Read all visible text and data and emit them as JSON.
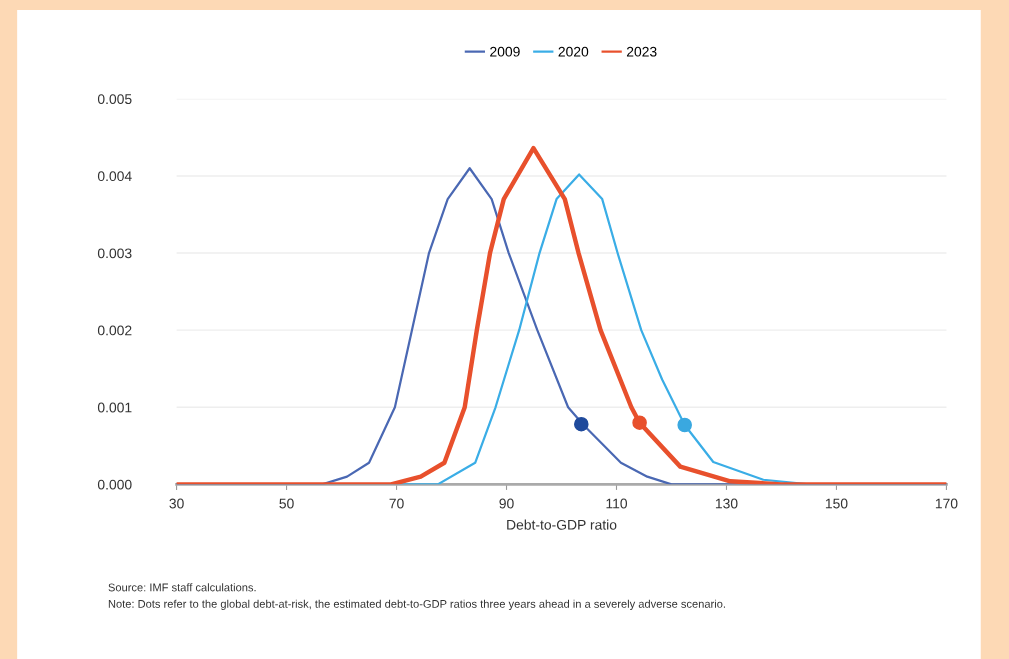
{
  "chart_data": {
    "type": "line",
    "xlabel": "Debt-to-GDP ratio",
    "xlim": [
      30,
      170
    ],
    "xticks": [
      30,
      50,
      70,
      90,
      110,
      130,
      150,
      170
    ],
    "ylim": [
      0,
      0.005
    ],
    "yticks": [
      {
        "value": 0,
        "label": "0.000"
      },
      {
        "value": 0.001,
        "label": "0.001"
      },
      {
        "value": 0.002,
        "label": "0.002"
      },
      {
        "value": 0.003,
        "label": "0.003"
      },
      {
        "value": 0.004,
        "label": "0.004"
      },
      {
        "value": 0.005,
        "label": "0.005"
      }
    ],
    "grid": "y",
    "legend": "top",
    "marker": "none",
    "line_style": "solid",
    "series": [
      {
        "name": "2009",
        "color": "#4a68b3",
        "x": [
          30,
          50,
          56.5,
          61,
          65,
          69.7,
          72.8,
          75.9,
          79.3,
          83.3,
          87.3,
          90.4,
          95.6,
          101.2,
          104,
          110.8,
          115.6,
          120,
          125,
          170
        ],
        "values": [
          0,
          0,
          0,
          0.0001,
          0.00028,
          0.001,
          0.002,
          0.003,
          0.0037,
          0.0041,
          0.0037,
          0.003,
          0.002,
          0.001,
          0.00077,
          0.00028,
          0.0001,
          0,
          0,
          0
        ]
      },
      {
        "name": "2020",
        "color": "#3aade6",
        "x": [
          30,
          70,
          77.5,
          84.3,
          88,
          92.3,
          96,
          99.1,
          103.2,
          107.4,
          110.2,
          114.5,
          118.3,
          122.4,
          127.6,
          136.7,
          145,
          170
        ],
        "values": [
          0,
          0,
          0,
          0.00028,
          0.001,
          0.002,
          0.003,
          0.0037,
          0.00402,
          0.0037,
          0.003,
          0.002,
          0.00136,
          0.00077,
          0.00029,
          6e-05,
          0,
          0
        ]
      },
      {
        "name": "2023",
        "color": "#e8502c",
        "x": [
          30,
          65,
          69,
          74.4,
          78.7,
          82.4,
          84.6,
          87,
          89.5,
          94.9,
          100.6,
          103.1,
          107.1,
          112.7,
          114.2,
          121.6,
          130.7,
          140,
          170
        ],
        "values": [
          0,
          0,
          0,
          0.0001,
          0.00028,
          0.001,
          0.002,
          0.003,
          0.0037,
          0.00436,
          0.0037,
          0.003,
          0.002,
          0.001,
          0.0008,
          0.00023,
          4e-05,
          0,
          0
        ]
      },
      {
        "type": "scatter",
        "marker": "circle",
        "color": "#1f4a9c",
        "x": [
          103.6
        ],
        "values": [
          0.00078
        ]
      },
      {
        "type": "scatter",
        "marker": "circle",
        "color": "#3aa8e0",
        "x": [
          122.4
        ],
        "values": [
          0.00077
        ]
      },
      {
        "type": "scatter",
        "marker": "circle",
        "color": "#e8502c",
        "x": [
          114.2
        ],
        "values": [
          0.0008
        ]
      }
    ],
    "annotations": [
      "Source: IMF staff calculations.",
      "Note: Dots refer to the global debt-at-risk, the estimated debt-to-GDP ratios three years ahead in a severely adverse scenario."
    ]
  }
}
